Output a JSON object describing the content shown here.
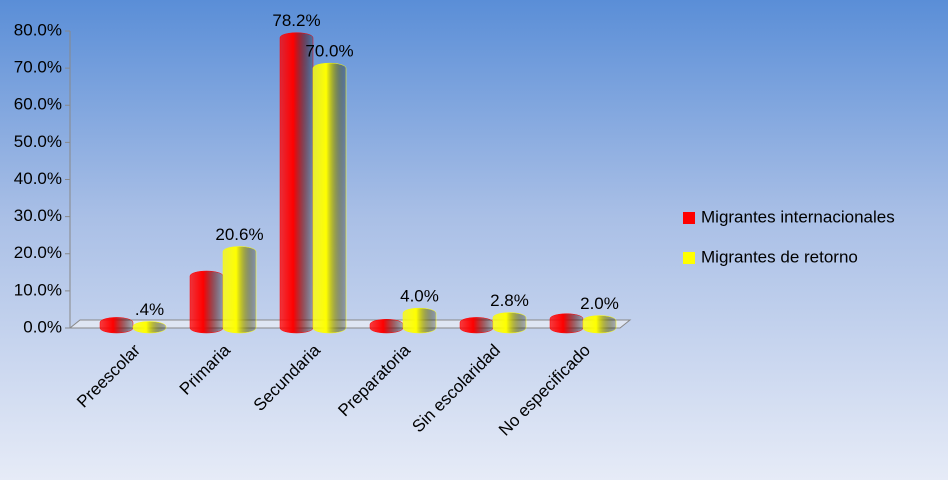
{
  "chart_data": {
    "type": "bar",
    "categories": [
      "Preescolar",
      "Primaria",
      "Secundaria",
      "Preparatoria",
      "Sin escolaridad",
      "No especificado"
    ],
    "series": [
      {
        "name": "Migrantes internacionales",
        "color": "#ff0000",
        "values": [
          1.5,
          14.0,
          78.2,
          1.0,
          1.5,
          2.5
        ],
        "value_labels": [
          null,
          null,
          "78.2%",
          null,
          null,
          null
        ]
      },
      {
        "name": "Migrantes de retorno",
        "color": "#ffff00",
        "values": [
          0.4,
          20.6,
          70.0,
          4.0,
          2.8,
          2.0
        ],
        "value_labels": [
          ".4%",
          "20.6%",
          "70.0%",
          "4.0%",
          "2.8%",
          "2.0%"
        ]
      }
    ],
    "ylim": [
      0,
      80
    ],
    "yticks": [
      {
        "value": 0,
        "label": "0.0%"
      },
      {
        "value": 10,
        "label": "10.0%"
      },
      {
        "value": 20,
        "label": "20.0%"
      },
      {
        "value": 30,
        "label": "30.0%"
      },
      {
        "value": 40,
        "label": "40.0%"
      },
      {
        "value": 50,
        "label": "50.0%"
      },
      {
        "value": 60,
        "label": "60.0%"
      },
      {
        "value": 70,
        "label": "70.0%"
      },
      {
        "value": 80,
        "label": "80.0%"
      }
    ],
    "legend": "right"
  }
}
